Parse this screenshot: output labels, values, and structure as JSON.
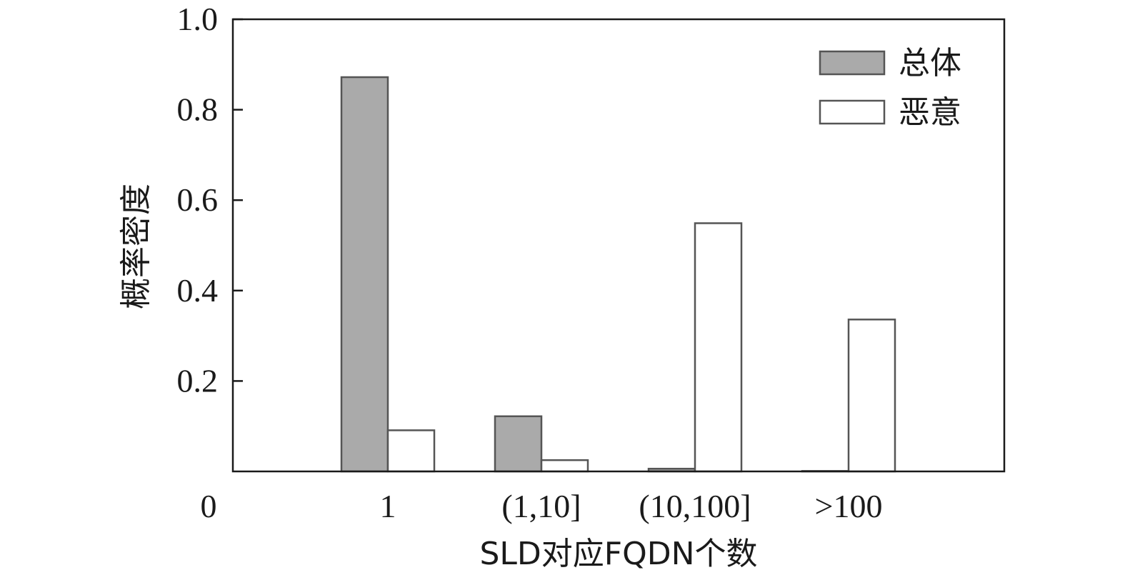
{
  "chart_data": {
    "type": "bar",
    "categories": [
      "1",
      "(1,10]",
      "(10,100]",
      ">100"
    ],
    "series": [
      {
        "name": "总体",
        "values": [
          0.872,
          0.122,
          0.006,
          0.001
        ],
        "color": "#aaaaaa"
      },
      {
        "name": "恶意",
        "values": [
          0.091,
          0.025,
          0.549,
          0.336
        ],
        "color": "#ffffff"
      }
    ],
    "xlabel": "SLD对应FQDN个数",
    "ylabel": "概率密度",
    "ylim": [
      0,
      1.0
    ],
    "y_ticks": [
      "0.2",
      "0.4",
      "0.6",
      "0.8",
      "1.0"
    ],
    "x_origin_label": "0",
    "legend": "top-right",
    "grid": false,
    "edge_color": "#555555"
  }
}
